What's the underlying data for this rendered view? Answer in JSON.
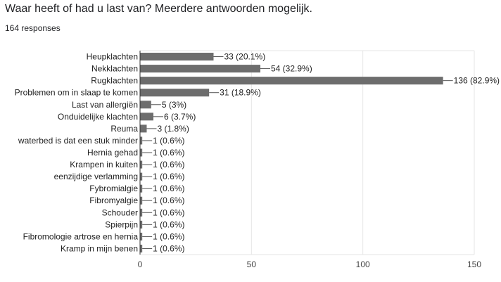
{
  "header": {
    "question": "Waar heeft of had u last van? Meerdere antwoorden mogelijk.",
    "responses": "164 responses"
  },
  "colors": {
    "bar": "#6d6d6d",
    "grid": "#e6e6e6",
    "axis": "#333333"
  },
  "chart_data": {
    "type": "bar",
    "orientation": "horizontal",
    "categories": [
      "Heupklachten",
      "Nekklachten",
      "Rugklachten",
      "Problemen om in slaap te komen",
      "Last van allergiën",
      "Onduidelijke klachten",
      "Reuma",
      "waterbed is dat een stuk minder",
      "Hernia gehad",
      "Krampen in kuiten",
      "eenzijdige verlamming",
      "Fybromialgie",
      "Fibromyalgie",
      "Schouder",
      "Spierpijn",
      "Fibromologie artrose en hernia",
      "Kramp in mijn benen"
    ],
    "values": [
      33,
      54,
      136,
      31,
      5,
      6,
      3,
      1,
      1,
      1,
      1,
      1,
      1,
      1,
      1,
      1,
      1
    ],
    "data_labels": [
      "33 (20.1%)",
      "54 (32.9%)",
      "136 (82.9%)",
      "31 (18.9%)",
      "5 (3%)",
      "6 (3.7%)",
      "3 (1.8%)",
      "1 (0.6%)",
      "1 (0.6%)",
      "1 (0.6%)",
      "1 (0.6%)",
      "1 (0.6%)",
      "1 (0.6%)",
      "1 (0.6%)",
      "1 (0.6%)",
      "1 (0.6%)",
      "1 (0.6%)"
    ],
    "xlim": [
      0,
      150
    ],
    "xticks": [
      0,
      50,
      100,
      150
    ],
    "xtick_labels": [
      "0",
      "50",
      "100",
      "150"
    ],
    "grid": true
  }
}
